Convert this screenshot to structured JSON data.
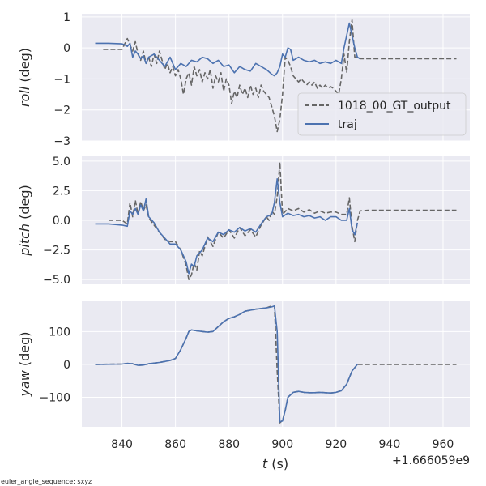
{
  "figure": {
    "footnote": "euler_angle_sequence: sxyz",
    "x_offset_label": "+1.666059e9",
    "xlabel_var": "t",
    "xlabel_unit": " (s)"
  },
  "legend": {
    "placement": "lower-right of top panel",
    "entries": [
      {
        "label": "1018_00_GT_output",
        "color": "#666666",
        "dash": "dashed"
      },
      {
        "label": "traj",
        "color": "#4c72b0",
        "dash": "solid"
      }
    ]
  },
  "chart_data": [
    {
      "type": "line",
      "ylabel_var": "roll",
      "ylabel_unit": " (deg)",
      "xlim": [
        825,
        970
      ],
      "ylim": [
        -3,
        1.1
      ],
      "xticks": [
        840,
        860,
        880,
        900,
        920,
        940,
        960
      ],
      "yticks": [
        1,
        0,
        -1,
        -2,
        -3
      ],
      "ytick_labels": [
        "1",
        "0",
        "−1",
        "−2",
        "−3"
      ],
      "grid": true,
      "series": [
        {
          "name": "1018_00_GT_output",
          "color": "#666666",
          "dash": "dashed",
          "x": [
            833,
            837,
            840,
            842,
            843,
            844,
            845,
            846,
            847,
            848,
            849,
            850,
            851,
            852,
            853,
            854,
            855,
            856,
            857,
            858,
            859,
            860,
            861,
            862,
            863,
            864,
            865,
            866,
            867,
            868,
            869,
            870,
            871,
            872,
            873,
            874,
            875,
            876,
            877,
            878,
            879,
            880,
            881,
            882,
            883,
            884,
            885,
            886,
            887,
            888,
            889,
            890,
            891,
            892,
            893,
            894,
            895,
            896,
            897,
            898,
            899,
            900,
            901,
            902,
            903,
            904,
            905,
            906,
            907,
            908,
            909,
            910,
            911,
            912,
            913,
            914,
            915,
            916,
            917,
            918,
            919,
            920,
            921,
            922,
            923,
            924,
            925,
            926,
            927,
            928,
            929,
            932,
            940,
            950,
            960,
            965
          ],
          "y": [
            -0.05,
            -0.05,
            -0.05,
            0.3,
            0.1,
            -0.1,
            0.2,
            -0.2,
            -0.4,
            -0.1,
            -0.5,
            -0.3,
            -0.6,
            -0.2,
            -0.5,
            -0.1,
            -0.4,
            -0.7,
            -0.5,
            -0.8,
            -0.6,
            -0.9,
            -0.7,
            -1.0,
            -1.5,
            -1.0,
            -0.8,
            -1.2,
            -0.6,
            -0.9,
            -0.7,
            -1.1,
            -0.8,
            -1.0,
            -0.7,
            -1.3,
            -0.9,
            -1.1,
            -0.8,
            -1.4,
            -1.0,
            -1.2,
            -1.8,
            -1.4,
            -1.6,
            -1.2,
            -1.5,
            -1.3,
            -1.6,
            -1.2,
            -1.5,
            -1.3,
            -1.6,
            -1.2,
            -1.4,
            -1.5,
            -1.6,
            -1.9,
            -2.2,
            -2.7,
            -2.3,
            -1.5,
            -0.3,
            -0.4,
            -0.6,
            -0.9,
            -1.0,
            -1.1,
            -1.0,
            -1.1,
            -1.2,
            -1.1,
            -1.2,
            -1.1,
            -1.3,
            -1.2,
            -1.3,
            -1.2,
            -1.3,
            -1.25,
            -1.3,
            -1.4,
            -1.5,
            -1.0,
            -0.2,
            -0.8,
            0.2,
            0.9,
            -0.3,
            -0.3,
            -0.35,
            -0.35,
            -0.35,
            -0.35,
            -0.35,
            -0.35
          ]
        },
        {
          "name": "traj",
          "color": "#4c72b0",
          "dash": "solid",
          "x": [
            830,
            835,
            840,
            841,
            842,
            843,
            844,
            845,
            846,
            847,
            848,
            849,
            850,
            852,
            854,
            856,
            858,
            860,
            862,
            864,
            866,
            868,
            870,
            872,
            874,
            876,
            878,
            880,
            882,
            884,
            886,
            888,
            890,
            892,
            894,
            896,
            897,
            898,
            899,
            900,
            901,
            902,
            903,
            904,
            906,
            908,
            910,
            912,
            914,
            916,
            918,
            920,
            922,
            923,
            924,
            925,
            926,
            927,
            928,
            929
          ],
          "y": [
            0.15,
            0.15,
            0.13,
            0.1,
            0.05,
            0.15,
            -0.3,
            -0.1,
            -0.2,
            -0.35,
            -0.25,
            -0.5,
            -0.3,
            -0.2,
            -0.4,
            -0.6,
            -0.3,
            -0.7,
            -0.5,
            -0.6,
            -0.4,
            -0.45,
            -0.3,
            -0.35,
            -0.5,
            -0.4,
            -0.6,
            -0.55,
            -0.8,
            -0.6,
            -0.7,
            -0.75,
            -0.5,
            -0.6,
            -0.7,
            -0.85,
            -0.9,
            -0.8,
            -0.6,
            -0.2,
            -0.3,
            0.0,
            -0.05,
            -0.4,
            -0.3,
            -0.4,
            -0.45,
            -0.4,
            -0.5,
            -0.45,
            -0.5,
            -0.4,
            -0.5,
            0.0,
            0.4,
            0.8,
            0.4,
            0.0,
            -0.3,
            -0.35
          ]
        }
      ]
    },
    {
      "type": "line",
      "ylabel_var": "pitch",
      "ylabel_unit": " (deg)",
      "xlim": [
        825,
        970
      ],
      "ylim": [
        -5.4,
        5.4
      ],
      "xticks": [
        840,
        860,
        880,
        900,
        920,
        940,
        960
      ],
      "yticks": [
        5.0,
        2.5,
        0.0,
        -2.5,
        -5.0
      ],
      "ytick_labels": [
        "5.0",
        "2.5",
        "0.0",
        "−2.5",
        "−5.0"
      ],
      "grid": true,
      "series": [
        {
          "name": "1018_00_GT_output",
          "color": "#666666",
          "dash": "dashed",
          "x": [
            835,
            840,
            842,
            843,
            844,
            845,
            846,
            847,
            848,
            849,
            850,
            852,
            854,
            856,
            858,
            860,
            862,
            864,
            865,
            866,
            867,
            868,
            869,
            870,
            872,
            874,
            876,
            878,
            880,
            882,
            884,
            886,
            888,
            890,
            892,
            894,
            895,
            896,
            897,
            898,
            899,
            900,
            902,
            904,
            906,
            908,
            910,
            912,
            914,
            916,
            918,
            920,
            922,
            924,
            925,
            926,
            927,
            928,
            929,
            932,
            940,
            950,
            960,
            965
          ],
          "y": [
            0.0,
            0.0,
            -0.3,
            1.5,
            0.3,
            1.7,
            0.5,
            1.6,
            0.8,
            1.3,
            0.2,
            -0.4,
            -1.0,
            -1.6,
            -1.8,
            -1.8,
            -2.5,
            -3.8,
            -5.0,
            -4.6,
            -3.6,
            -4.2,
            -2.6,
            -3.0,
            -1.4,
            -2.2,
            -1.0,
            -1.5,
            -0.8,
            -1.5,
            -0.6,
            -1.3,
            -0.8,
            -1.4,
            -0.4,
            0.3,
            0.0,
            0.8,
            0.5,
            2.0,
            4.9,
            0.5,
            1.0,
            0.8,
            1.0,
            0.7,
            0.9,
            0.6,
            0.8,
            0.6,
            0.7,
            0.7,
            0.5,
            0.5,
            1.9,
            -0.5,
            -1.8,
            0.0,
            0.8,
            0.85,
            0.85,
            0.85,
            0.85,
            0.85
          ]
        },
        {
          "name": "traj",
          "color": "#4c72b0",
          "dash": "solid",
          "x": [
            830,
            835,
            840,
            842,
            843,
            844,
            845,
            846,
            847,
            848,
            849,
            850,
            852,
            854,
            856,
            858,
            860,
            862,
            864,
            865,
            866,
            867,
            868,
            870,
            872,
            874,
            876,
            878,
            880,
            882,
            884,
            886,
            888,
            890,
            892,
            894,
            896,
            897,
            898,
            899,
            900,
            902,
            904,
            906,
            908,
            910,
            912,
            914,
            916,
            918,
            920,
            922,
            924,
            925,
            926,
            927,
            928
          ],
          "y": [
            -0.3,
            -0.3,
            -0.4,
            -0.5,
            0.8,
            0.5,
            1.0,
            0.5,
            1.3,
            0.8,
            1.8,
            0.3,
            -0.2,
            -1.0,
            -1.5,
            -2.0,
            -2.0,
            -2.5,
            -3.5,
            -4.5,
            -3.7,
            -3.9,
            -3.0,
            -2.5,
            -1.5,
            -1.8,
            -1.0,
            -1.2,
            -0.8,
            -1.0,
            -0.6,
            -0.9,
            -0.7,
            -1.0,
            -0.3,
            0.3,
            0.5,
            1.5,
            3.5,
            1.5,
            0.3,
            0.6,
            0.4,
            0.5,
            0.3,
            0.4,
            0.2,
            0.3,
            0.0,
            0.3,
            0.3,
            0.0,
            0.0,
            1.0,
            -0.8,
            -1.2,
            -0.2
          ]
        }
      ]
    },
    {
      "type": "line",
      "ylabel_var": "yaw",
      "ylabel_unit": " (deg)",
      "xlim": [
        825,
        970
      ],
      "ylim": [
        -190,
        192
      ],
      "xticks": [
        840,
        860,
        880,
        900,
        920,
        940,
        960
      ],
      "yticks": [
        100,
        0,
        -100
      ],
      "ytick_labels": [
        "100",
        "0",
        "−100"
      ],
      "xtick_labels": [
        "840",
        "860",
        "880",
        "900",
        "920",
        "940",
        "960"
      ],
      "grid": true,
      "series": [
        {
          "name": "1018_00_GT_output",
          "color": "#666666",
          "dash": "dashed",
          "x": [
            830,
            840,
            842,
            844,
            846,
            848,
            850,
            852,
            854,
            856,
            858,
            860,
            862,
            864,
            865,
            866,
            868,
            870,
            872,
            874,
            876,
            878,
            880,
            882,
            884,
            886,
            888,
            890,
            892,
            894,
            896,
            897,
            898,
            899,
            900,
            901,
            902,
            904,
            906,
            908,
            910,
            912,
            914,
            916,
            918,
            920,
            922,
            924,
            926,
            928,
            930,
            940,
            950,
            960,
            965
          ],
          "y": [
            0,
            1,
            3,
            2,
            -3,
            -2,
            2,
            4,
            6,
            9,
            12,
            18,
            45,
            80,
            100,
            105,
            102,
            100,
            98,
            100,
            115,
            130,
            140,
            145,
            152,
            162,
            165,
            168,
            170,
            172,
            178,
            180,
            -20,
            -178,
            -170,
            -140,
            -100,
            -85,
            -82,
            -85,
            -86,
            -86,
            -85,
            -86,
            -87,
            -85,
            -80,
            -60,
            -20,
            0,
            0,
            0,
            0,
            0,
            0
          ]
        },
        {
          "name": "traj",
          "color": "#4c72b0",
          "dash": "solid",
          "x": [
            830,
            840,
            842,
            844,
            846,
            848,
            850,
            852,
            854,
            856,
            858,
            860,
            862,
            864,
            865,
            866,
            868,
            870,
            872,
            874,
            876,
            878,
            880,
            882,
            884,
            886,
            888,
            890,
            892,
            894,
            896,
            897,
            898,
            899,
            900,
            901,
            902,
            904,
            906,
            908,
            910,
            912,
            914,
            916,
            918,
            920,
            922,
            924,
            926,
            928
          ],
          "y": [
            0,
            1,
            3,
            2,
            -3,
            -2,
            2,
            4,
            6,
            9,
            12,
            18,
            45,
            80,
            100,
            105,
            102,
            100,
            98,
            100,
            115,
            130,
            140,
            145,
            152,
            162,
            165,
            168,
            170,
            172,
            175,
            178,
            100,
            -175,
            -172,
            -140,
            -100,
            -85,
            -82,
            -85,
            -86,
            -86,
            -85,
            -86,
            -87,
            -85,
            -80,
            -60,
            -20,
            0
          ]
        }
      ]
    }
  ]
}
